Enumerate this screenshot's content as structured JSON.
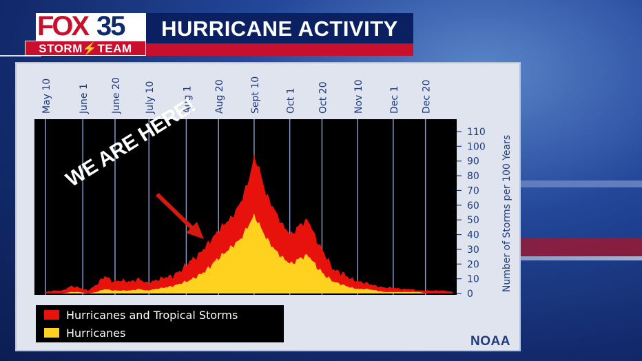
{
  "header": {
    "logo_brand": "FOX",
    "logo_channel": "35",
    "logo_team": "STORM",
    "logo_team2": "TEAM",
    "title": "HURRICANE ACTIVITY"
  },
  "source_label": "NOAA",
  "annotation": "WE ARE HERE!",
  "colors": {
    "tropical_storms": "#e8120c",
    "hurricanes": "#ffd21f",
    "brand_red": "#c8102e",
    "brand_blue": "#0b2060"
  },
  "chart_data": {
    "type": "area",
    "title": "",
    "ylabel": "Number of Storms per 100 Years",
    "xlabel": "",
    "ylim": [
      0,
      110
    ],
    "yticks": [
      0,
      10,
      20,
      30,
      40,
      50,
      60,
      70,
      80,
      90,
      100,
      110
    ],
    "xlim_days": [
      0,
      242
    ],
    "x_tick_labels": [
      "May 10",
      "June 1",
      "June 20",
      "July 10",
      "Aug 1",
      "Aug 20",
      "Sept 10",
      "Oct 1",
      "Oct 20",
      "Nov 10",
      "Dec 1",
      "Dec 20"
    ],
    "x_tick_days": [
      0,
      22,
      41,
      61,
      83,
      102,
      123,
      144,
      163,
      184,
      205,
      224
    ],
    "legend": {
      "position": "bottom-left",
      "entries": [
        "Hurricanes and Tropical Storms",
        "Hurricanes"
      ]
    },
    "series": [
      {
        "name": "Hurricanes and Tropical Storms",
        "x": [
          0,
          5,
          10,
          15,
          20,
          25,
          30,
          35,
          40,
          45,
          50,
          55,
          60,
          65,
          70,
          75,
          80,
          85,
          90,
          95,
          100,
          105,
          110,
          115,
          120,
          123,
          126,
          130,
          135,
          140,
          145,
          150,
          155,
          160,
          165,
          170,
          175,
          180,
          185,
          190,
          195,
          200,
          205,
          210,
          215,
          220,
          225,
          230,
          235,
          240
        ],
        "values": [
          1,
          2,
          2,
          5,
          4,
          2,
          6,
          12,
          8,
          9,
          8,
          10,
          7,
          9,
          11,
          12,
          16,
          22,
          26,
          33,
          40,
          47,
          52,
          62,
          78,
          93,
          85,
          68,
          57,
          46,
          40,
          47,
          50,
          36,
          26,
          16,
          14,
          10,
          8,
          7,
          5,
          4,
          4,
          3,
          3,
          2,
          2,
          2,
          2,
          1
        ]
      },
      {
        "name": "Hurricanes",
        "x": [
          0,
          5,
          10,
          15,
          20,
          25,
          30,
          35,
          40,
          45,
          50,
          55,
          60,
          65,
          70,
          75,
          80,
          85,
          90,
          95,
          100,
          105,
          110,
          115,
          120,
          123,
          126,
          130,
          135,
          140,
          145,
          150,
          155,
          160,
          165,
          170,
          175,
          180,
          185,
          190,
          195,
          200,
          205,
          210,
          215,
          220,
          225,
          230,
          235,
          240
        ],
        "values": [
          0,
          0,
          0,
          1,
          1,
          0,
          1,
          3,
          2,
          2,
          2,
          3,
          2,
          3,
          4,
          5,
          7,
          9,
          12,
          16,
          22,
          27,
          32,
          37,
          47,
          53,
          47,
          38,
          30,
          24,
          20,
          24,
          26,
          18,
          12,
          8,
          6,
          4,
          3,
          3,
          2,
          1,
          1,
          1,
          1,
          1,
          0,
          0,
          0,
          0
        ]
      }
    ]
  }
}
